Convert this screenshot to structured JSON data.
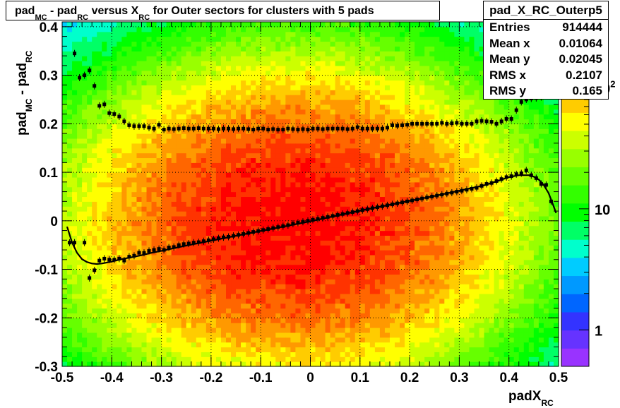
{
  "chart_data": {
    "type": "heatmap",
    "title": {
      "parts": [
        {
          "text": "pad",
          "style": "normal"
        },
        {
          "text": "MC",
          "style": "sub"
        },
        {
          "text": " - pad",
          "style": "normal"
        },
        {
          "text": "RC",
          "style": "sub"
        },
        {
          "text": " versus X",
          "style": "normal"
        },
        {
          "text": "RC",
          "style": "sub"
        },
        {
          "text": " for Outer sectors for clusters with 5 pads",
          "style": "normal"
        }
      ]
    },
    "xlabel": {
      "main": "padX",
      "sub": "RC"
    },
    "ylabel": {
      "parts": [
        {
          "text": "pad",
          "style": "normal"
        },
        {
          "text": "MC",
          "style": "sub"
        },
        {
          "text": " - pad",
          "style": "normal"
        },
        {
          "text": "RC",
          "style": "sub"
        }
      ]
    },
    "xlim": [
      -0.5,
      0.5
    ],
    "ylim": [
      -0.3,
      0.41
    ],
    "xticks": [
      -0.5,
      -0.4,
      -0.3,
      -0.2,
      -0.1,
      0,
      0.1,
      0.2,
      0.3,
      0.4,
      0.5
    ],
    "xtick_labels": [
      "-0.5",
      "-0.4",
      "-0.3",
      "-0.2",
      "-0.1",
      "0",
      "0.1",
      "0.2",
      "0.3",
      "0.4",
      "0.5"
    ],
    "yticks": [
      -0.3,
      -0.2,
      -0.1,
      0,
      0.1,
      0.2,
      0.3,
      0.4
    ],
    "ytick_labels": [
      "-0.3",
      "-0.2",
      "-0.1",
      "0",
      "0.1",
      "0.2",
      "0.3",
      "0.4"
    ],
    "grid": true,
    "colorbar": {
      "scale": "log",
      "zlim": [
        0.5,
        350
      ],
      "tick_values": [
        1,
        10,
        100
      ],
      "tick_labels": [
        {
          "base": "1",
          "exp": ""
        },
        {
          "base": "10",
          "exp": ""
        },
        {
          "base": "10",
          "exp": "2"
        }
      ],
      "colors": [
        "#9933ff",
        "#6633ff",
        "#3333ff",
        "#0066ff",
        "#0099ff",
        "#00ccff",
        "#00ffcc",
        "#00ff66",
        "#00ff00",
        "#33ff00",
        "#66ff00",
        "#99ff00",
        "#ccff00",
        "#ffff00",
        "#ffcc00",
        "#ff9900",
        "#ff6600",
        "#ff3300",
        "#ff0000"
      ]
    },
    "density_model": {
      "peak_count": 300,
      "x_center": -0.03,
      "x_sigma": 0.22,
      "y_center": 0.0,
      "y_sigma": 0.16,
      "x_bins": 100,
      "y_bins": 71
    },
    "series": [
      {
        "name": "mean profile",
        "kind": "markers",
        "points": [
          [
            -0.485,
            -0.045
          ],
          [
            -0.475,
            -0.045
          ],
          [
            -0.455,
            -0.045
          ],
          [
            -0.445,
            -0.118
          ],
          [
            -0.435,
            -0.102
          ],
          [
            -0.425,
            -0.082
          ],
          [
            -0.415,
            -0.078
          ],
          [
            -0.405,
            -0.08
          ],
          [
            -0.395,
            -0.08
          ],
          [
            -0.385,
            -0.078
          ],
          [
            -0.375,
            -0.082
          ],
          [
            -0.365,
            -0.074
          ],
          [
            -0.355,
            -0.072
          ],
          [
            -0.345,
            -0.066
          ],
          [
            -0.335,
            -0.066
          ],
          [
            -0.325,
            -0.062
          ],
          [
            -0.315,
            -0.06
          ],
          [
            -0.305,
            -0.058
          ],
          [
            -0.295,
            -0.06
          ],
          [
            -0.285,
            -0.055
          ],
          [
            -0.275,
            -0.054
          ],
          [
            -0.265,
            -0.05
          ],
          [
            -0.255,
            -0.048
          ],
          [
            -0.245,
            -0.047
          ],
          [
            -0.235,
            -0.045
          ],
          [
            -0.225,
            -0.044
          ],
          [
            -0.215,
            -0.042
          ],
          [
            -0.205,
            -0.04
          ],
          [
            -0.195,
            -0.038
          ],
          [
            -0.185,
            -0.036
          ],
          [
            -0.175,
            -0.034
          ],
          [
            -0.165,
            -0.033
          ],
          [
            -0.155,
            -0.031
          ],
          [
            -0.145,
            -0.029
          ],
          [
            -0.135,
            -0.027
          ],
          [
            -0.125,
            -0.025
          ],
          [
            -0.115,
            -0.023
          ],
          [
            -0.105,
            -0.021
          ],
          [
            -0.095,
            -0.019
          ],
          [
            -0.085,
            -0.017
          ],
          [
            -0.075,
            -0.015
          ],
          [
            -0.065,
            -0.013
          ],
          [
            -0.055,
            -0.011
          ],
          [
            -0.045,
            -0.009
          ],
          [
            -0.035,
            -0.006
          ],
          [
            -0.025,
            -0.004
          ],
          [
            -0.015,
            -0.002
          ],
          [
            -0.005,
            0.0
          ],
          [
            0.005,
            0.002
          ],
          [
            0.015,
            0.004
          ],
          [
            0.025,
            0.006
          ],
          [
            0.035,
            0.008
          ],
          [
            0.045,
            0.01
          ],
          [
            0.055,
            0.012
          ],
          [
            0.065,
            0.014
          ],
          [
            0.075,
            0.016
          ],
          [
            0.085,
            0.018
          ],
          [
            0.095,
            0.02
          ],
          [
            0.105,
            0.022
          ],
          [
            0.115,
            0.024
          ],
          [
            0.125,
            0.026
          ],
          [
            0.135,
            0.028
          ],
          [
            0.145,
            0.03
          ],
          [
            0.155,
            0.032
          ],
          [
            0.165,
            0.034
          ],
          [
            0.175,
            0.036
          ],
          [
            0.185,
            0.038
          ],
          [
            0.195,
            0.04
          ],
          [
            0.205,
            0.042
          ],
          [
            0.215,
            0.044
          ],
          [
            0.225,
            0.046
          ],
          [
            0.235,
            0.048
          ],
          [
            0.245,
            0.05
          ],
          [
            0.255,
            0.052
          ],
          [
            0.265,
            0.054
          ],
          [
            0.275,
            0.056
          ],
          [
            0.285,
            0.058
          ],
          [
            0.295,
            0.06
          ],
          [
            0.305,
            0.062
          ],
          [
            0.315,
            0.064
          ],
          [
            0.325,
            0.066
          ],
          [
            0.335,
            0.068
          ],
          [
            0.345,
            0.072
          ],
          [
            0.355,
            0.076
          ],
          [
            0.365,
            0.078
          ],
          [
            0.375,
            0.082
          ],
          [
            0.385,
            0.086
          ],
          [
            0.395,
            0.09
          ],
          [
            0.405,
            0.092
          ],
          [
            0.415,
            0.096
          ],
          [
            0.425,
            0.098
          ],
          [
            0.435,
            0.104
          ],
          [
            0.445,
            0.094
          ],
          [
            0.455,
            0.088
          ],
          [
            0.465,
            0.076
          ],
          [
            0.475,
            0.074
          ],
          [
            0.485,
            0.04
          ]
        ]
      },
      {
        "name": "RMS profile",
        "kind": "markers",
        "points": [
          [
            -0.475,
            0.345
          ],
          [
            -0.465,
            0.295
          ],
          [
            -0.455,
            0.3
          ],
          [
            -0.445,
            0.31
          ],
          [
            -0.435,
            0.278
          ],
          [
            -0.425,
            0.237
          ],
          [
            -0.415,
            0.24
          ],
          [
            -0.405,
            0.222
          ],
          [
            -0.395,
            0.22
          ],
          [
            -0.385,
            0.215
          ],
          [
            -0.375,
            0.205
          ],
          [
            -0.365,
            0.197
          ],
          [
            -0.355,
            0.195
          ],
          [
            -0.345,
            0.195
          ],
          [
            -0.335,
            0.195
          ],
          [
            -0.325,
            0.192
          ],
          [
            -0.315,
            0.19
          ],
          [
            -0.305,
            0.198
          ],
          [
            -0.295,
            0.188
          ],
          [
            -0.285,
            0.19
          ],
          [
            -0.275,
            0.189
          ],
          [
            -0.265,
            0.19
          ],
          [
            -0.255,
            0.191
          ],
          [
            -0.245,
            0.19
          ],
          [
            -0.235,
            0.19
          ],
          [
            -0.225,
            0.191
          ],
          [
            -0.215,
            0.19
          ],
          [
            -0.205,
            0.19
          ],
          [
            -0.195,
            0.19
          ],
          [
            -0.185,
            0.189
          ],
          [
            -0.175,
            0.19
          ],
          [
            -0.165,
            0.19
          ],
          [
            -0.155,
            0.189
          ],
          [
            -0.145,
            0.19
          ],
          [
            -0.135,
            0.19
          ],
          [
            -0.125,
            0.189
          ],
          [
            -0.115,
            0.188
          ],
          [
            -0.105,
            0.19
          ],
          [
            -0.095,
            0.19
          ],
          [
            -0.085,
            0.188
          ],
          [
            -0.075,
            0.189
          ],
          [
            -0.065,
            0.188
          ],
          [
            -0.055,
            0.188
          ],
          [
            -0.045,
            0.19
          ],
          [
            -0.035,
            0.189
          ],
          [
            -0.025,
            0.188
          ],
          [
            -0.015,
            0.189
          ],
          [
            -0.005,
            0.188
          ],
          [
            0.005,
            0.19
          ],
          [
            0.015,
            0.19
          ],
          [
            0.025,
            0.189
          ],
          [
            0.035,
            0.19
          ],
          [
            0.045,
            0.19
          ],
          [
            0.055,
            0.19
          ],
          [
            0.065,
            0.19
          ],
          [
            0.075,
            0.189
          ],
          [
            0.085,
            0.19
          ],
          [
            0.095,
            0.193
          ],
          [
            0.105,
            0.19
          ],
          [
            0.115,
            0.19
          ],
          [
            0.125,
            0.19
          ],
          [
            0.135,
            0.19
          ],
          [
            0.145,
            0.19
          ],
          [
            0.155,
            0.192
          ],
          [
            0.165,
            0.197
          ],
          [
            0.175,
            0.196
          ],
          [
            0.185,
            0.197
          ],
          [
            0.195,
            0.198
          ],
          [
            0.205,
            0.2
          ],
          [
            0.215,
            0.2
          ],
          [
            0.225,
            0.2
          ],
          [
            0.235,
            0.2
          ],
          [
            0.245,
            0.2
          ],
          [
            0.255,
            0.2
          ],
          [
            0.265,
            0.202
          ],
          [
            0.275,
            0.2
          ],
          [
            0.285,
            0.201
          ],
          [
            0.295,
            0.202
          ],
          [
            0.305,
            0.2
          ],
          [
            0.315,
            0.2
          ],
          [
            0.325,
            0.2
          ],
          [
            0.335,
            0.205
          ],
          [
            0.345,
            0.206
          ],
          [
            0.355,
            0.205
          ],
          [
            0.365,
            0.204
          ],
          [
            0.375,
            0.2
          ],
          [
            0.385,
            0.205
          ],
          [
            0.395,
            0.21
          ],
          [
            0.405,
            0.21
          ],
          [
            0.415,
            0.228
          ],
          [
            0.425,
            0.245
          ],
          [
            0.435,
            0.25
          ],
          [
            0.445,
            0.252
          ],
          [
            0.455,
            0.253
          ],
          [
            0.465,
            0.255
          ],
          [
            0.485,
            0.285
          ]
        ]
      },
      {
        "name": "polynomial fit",
        "kind": "line",
        "points": [
          [
            -0.49,
            -0.012
          ],
          [
            -0.48,
            -0.045
          ],
          [
            -0.47,
            -0.066
          ],
          [
            -0.46,
            -0.079
          ],
          [
            -0.45,
            -0.085
          ],
          [
            -0.44,
            -0.088
          ],
          [
            -0.43,
            -0.089
          ],
          [
            -0.42,
            -0.088
          ],
          [
            -0.41,
            -0.086
          ],
          [
            -0.4,
            -0.084
          ],
          [
            -0.38,
            -0.079
          ],
          [
            -0.36,
            -0.075
          ],
          [
            -0.34,
            -0.071
          ],
          [
            -0.32,
            -0.066
          ],
          [
            -0.3,
            -0.062
          ],
          [
            -0.25,
            -0.051
          ],
          [
            -0.2,
            -0.041
          ],
          [
            -0.15,
            -0.031
          ],
          [
            -0.1,
            -0.021
          ],
          [
            -0.05,
            -0.011
          ],
          [
            0.0,
            -0.001
          ],
          [
            0.05,
            0.01
          ],
          [
            0.1,
            0.021
          ],
          [
            0.15,
            0.031
          ],
          [
            0.2,
            0.041
          ],
          [
            0.25,
            0.051
          ],
          [
            0.3,
            0.062
          ],
          [
            0.35,
            0.073
          ],
          [
            0.38,
            0.083
          ],
          [
            0.4,
            0.09
          ],
          [
            0.42,
            0.094
          ],
          [
            0.44,
            0.094
          ],
          [
            0.45,
            0.091
          ],
          [
            0.46,
            0.085
          ],
          [
            0.47,
            0.074
          ],
          [
            0.48,
            0.057
          ],
          [
            0.49,
            0.03
          ],
          [
            0.495,
            0.016
          ]
        ]
      }
    ]
  },
  "stats": {
    "title": "pad_X_RC_Outerp5",
    "rows": [
      {
        "key": "Entries",
        "value": "914444"
      },
      {
        "key": "Mean x",
        "value": "0.01064"
      },
      {
        "key": "Mean y",
        "value": "0.02045"
      },
      {
        "key": "RMS x",
        "value": "0.2107"
      },
      {
        "key": "RMS y",
        "value": "0.165"
      }
    ]
  }
}
